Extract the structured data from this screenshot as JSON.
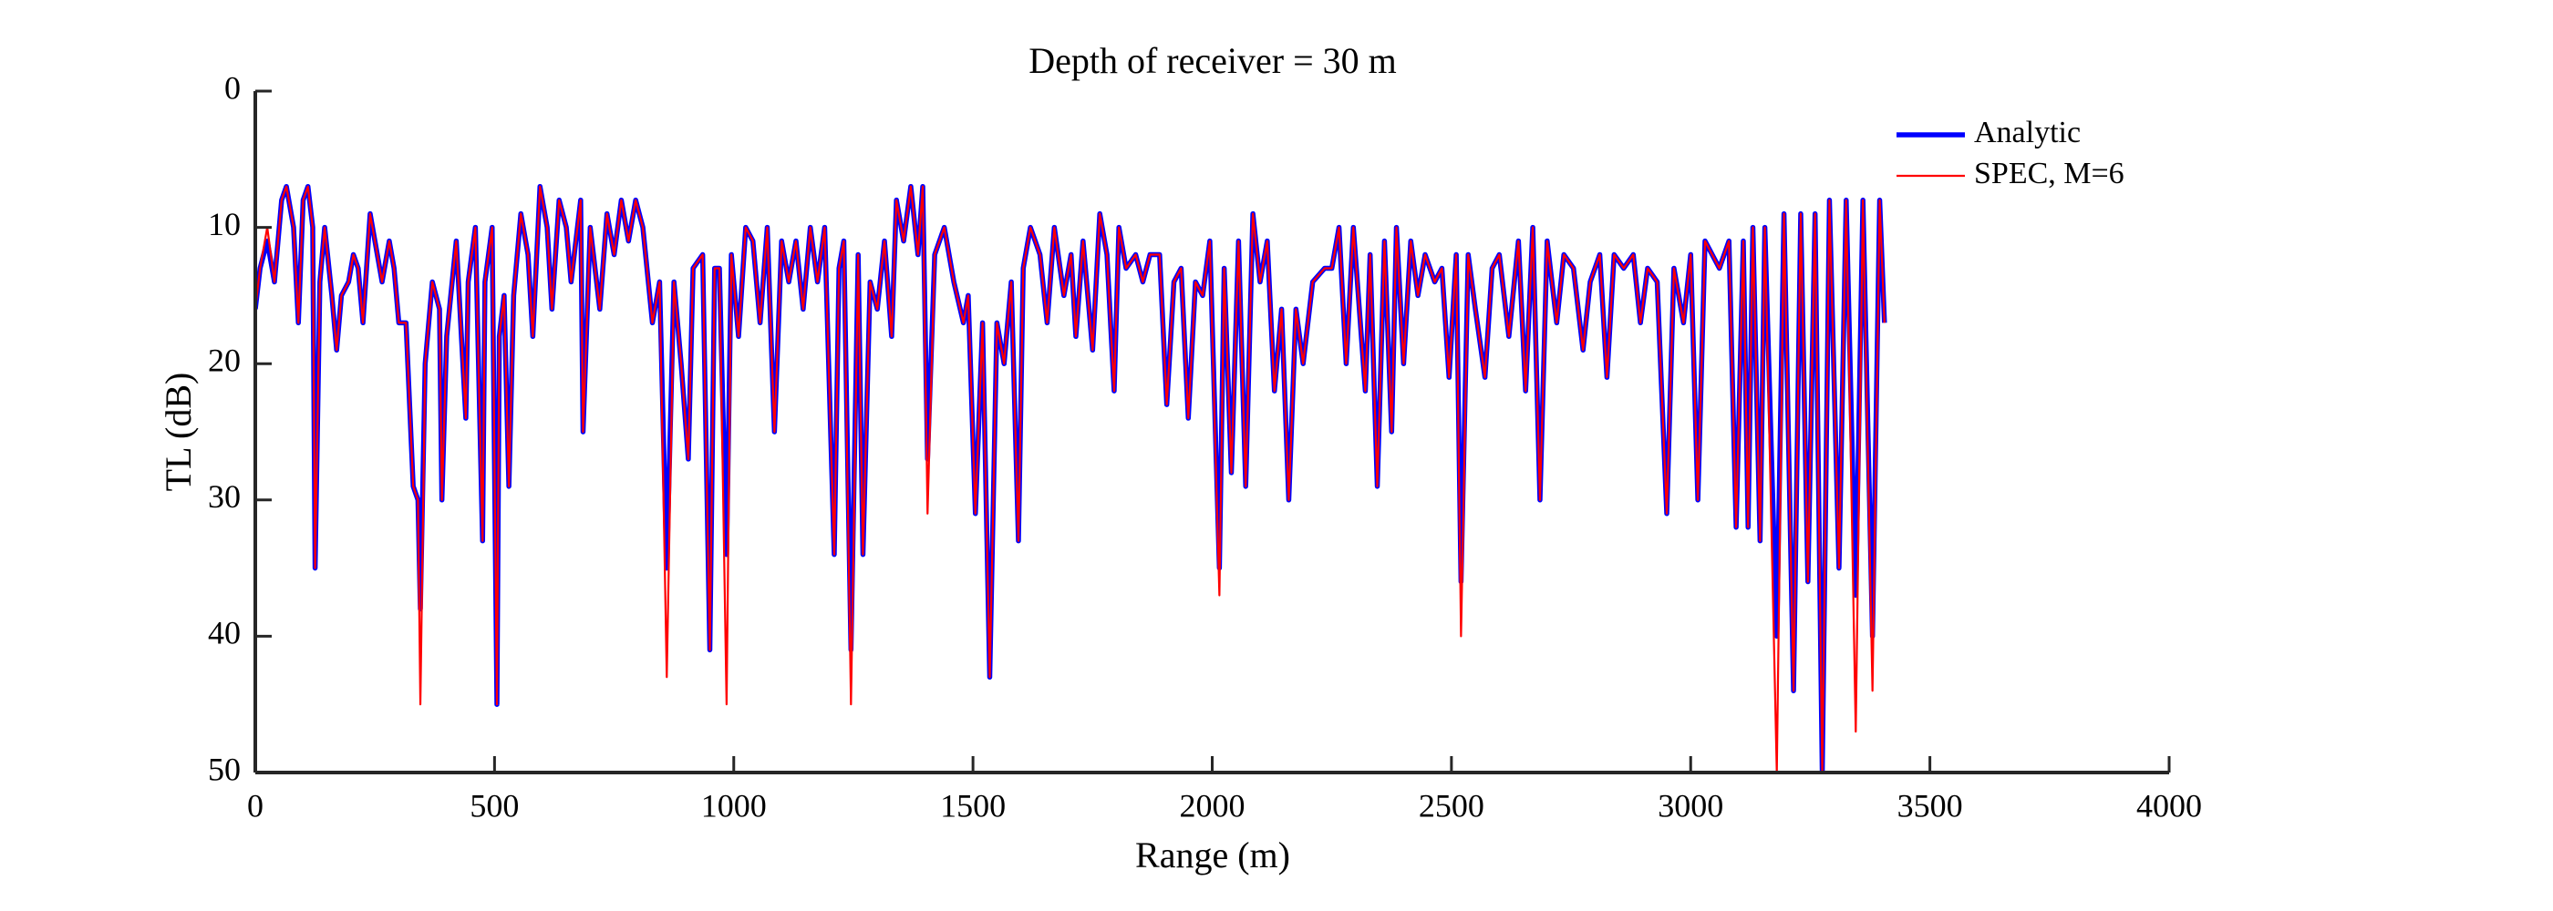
{
  "chart_data": {
    "type": "line",
    "title": "Depth of receiver = 30 m",
    "xlabel": "Range (m)",
    "ylabel": "TL (dB)",
    "xlim": [
      0,
      4000
    ],
    "xticks": [
      0,
      500,
      1000,
      1500,
      2000,
      2500,
      3000,
      3500,
      4000
    ],
    "ylim": [
      0,
      50
    ],
    "yticks": [
      0,
      10,
      20,
      30,
      40,
      50
    ],
    "y_reversed": true,
    "grid": false,
    "legend": "upper right",
    "x": [
      0,
      10,
      25,
      40,
      55,
      65,
      80,
      90,
      100,
      110,
      120,
      125,
      135,
      145,
      160,
      170,
      180,
      195,
      205,
      215,
      225,
      240,
      255,
      265,
      280,
      290,
      300,
      315,
      330,
      340,
      345,
      355,
      370,
      385,
      390,
      400,
      420,
      440,
      445,
      460,
      475,
      480,
      495,
      505,
      510,
      520,
      530,
      540,
      555,
      570,
      580,
      595,
      610,
      620,
      635,
      650,
      660,
      680,
      685,
      700,
      720,
      735,
      750,
      765,
      780,
      795,
      810,
      830,
      845,
      860,
      875,
      890,
      905,
      915,
      935,
      950,
      960,
      970,
      985,
      995,
      1010,
      1025,
      1040,
      1055,
      1070,
      1085,
      1100,
      1115,
      1130,
      1145,
      1160,
      1175,
      1190,
      1210,
      1220,
      1230,
      1245,
      1260,
      1270,
      1285,
      1300,
      1315,
      1330,
      1340,
      1355,
      1370,
      1385,
      1395,
      1405,
      1420,
      1440,
      1460,
      1480,
      1490,
      1505,
      1520,
      1535,
      1550,
      1565,
      1580,
      1595,
      1605,
      1620,
      1640,
      1655,
      1670,
      1690,
      1705,
      1715,
      1730,
      1750,
      1765,
      1780,
      1795,
      1805,
      1820,
      1840,
      1855,
      1870,
      1890,
      1905,
      1920,
      1935,
      1950,
      1965,
      1980,
      1995,
      2015,
      2025,
      2040,
      2055,
      2070,
      2085,
      2100,
      2115,
      2130,
      2145,
      2160,
      2175,
      2190,
      2210,
      2235,
      2250,
      2265,
      2280,
      2295,
      2320,
      2330,
      2345,
      2360,
      2375,
      2385,
      2400,
      2415,
      2430,
      2445,
      2465,
      2480,
      2495,
      2510,
      2520,
      2535,
      2550,
      2570,
      2585,
      2600,
      2620,
      2640,
      2655,
      2670,
      2685,
      2700,
      2720,
      2735,
      2755,
      2775,
      2790,
      2810,
      2825,
      2840,
      2860,
      2880,
      2895,
      2910,
      2930,
      2950,
      2965,
      2985,
      3000,
      3015,
      3030,
      3060,
      3080,
      3095,
      3110,
      3120,
      3130,
      3145,
      3155,
      3180,
      3195,
      3215,
      3230,
      3245,
      3260,
      3275,
      3290,
      3310,
      3325,
      3345,
      3360,
      3380,
      3395,
      3405
    ],
    "series": [
      {
        "name": "Analytic",
        "color": "#0000ff",
        "values": [
          16,
          13,
          11,
          14,
          8,
          7,
          10,
          17,
          8,
          7,
          10,
          35,
          14,
          10,
          15,
          19,
          15,
          14,
          12,
          13,
          17,
          9,
          12,
          14,
          11,
          13,
          17,
          17,
          29,
          30,
          38,
          20,
          14,
          16,
          30,
          18,
          11,
          24,
          14,
          10,
          33,
          14,
          10,
          45,
          18,
          15,
          29,
          15,
          9,
          12,
          18,
          7,
          10,
          16,
          8,
          10,
          14,
          8,
          25,
          10,
          16,
          9,
          12,
          8,
          11,
          8,
          10,
          17,
          14,
          35,
          14,
          20,
          27,
          13,
          12,
          41,
          13,
          13,
          34,
          12,
          18,
          10,
          11,
          17,
          10,
          25,
          11,
          14,
          11,
          16,
          10,
          14,
          10,
          34,
          13,
          11,
          41,
          12,
          34,
          14,
          16,
          11,
          18,
          8,
          11,
          7,
          12,
          7,
          27,
          12,
          10,
          14,
          17,
          15,
          31,
          17,
          43,
          17,
          20,
          14,
          33,
          13,
          10,
          12,
          17,
          10,
          15,
          12,
          18,
          11,
          19,
          9,
          12,
          22,
          10,
          13,
          12,
          14,
          12,
          12,
          23,
          14,
          13,
          24,
          14,
          15,
          11,
          35,
          13,
          28,
          11,
          29,
          9,
          14,
          11,
          22,
          16,
          30,
          16,
          20,
          14,
          13,
          13,
          10,
          20,
          10,
          22,
          12,
          29,
          11,
          25,
          10,
          20,
          11,
          15,
          12,
          14,
          13,
          21,
          12,
          36,
          12,
          16,
          21,
          13,
          12,
          18,
          11,
          22,
          10,
          30,
          11,
          17,
          12,
          13,
          19,
          14,
          12,
          21,
          12,
          13,
          12,
          17,
          13,
          14,
          31,
          13,
          17,
          12,
          30,
          11,
          13,
          11,
          32,
          11,
          32,
          10,
          33,
          10,
          40,
          9,
          44,
          9,
          36,
          9,
          50,
          8,
          35,
          8,
          37,
          8,
          40,
          8,
          17
        ]
      },
      {
        "name": "SPEC, M=6",
        "color": "#ff0000",
        "values": [
          16,
          13,
          10,
          14,
          8,
          7,
          10,
          17,
          8,
          7,
          10,
          35,
          14,
          10,
          15,
          19,
          15,
          14,
          12,
          13,
          17,
          9,
          12,
          14,
          11,
          13,
          17,
          17,
          29,
          30,
          45,
          20,
          14,
          16,
          30,
          18,
          11,
          24,
          14,
          10,
          33,
          14,
          10,
          45,
          18,
          15,
          29,
          15,
          9,
          12,
          18,
          7,
          10,
          16,
          8,
          10,
          14,
          8,
          25,
          10,
          16,
          9,
          12,
          8,
          11,
          8,
          10,
          17,
          14,
          43,
          14,
          20,
          27,
          13,
          12,
          41,
          13,
          13,
          45,
          12,
          18,
          10,
          11,
          17,
          10,
          25,
          11,
          14,
          11,
          16,
          10,
          14,
          10,
          34,
          13,
          11,
          45,
          12,
          34,
          14,
          16,
          11,
          18,
          8,
          11,
          7,
          12,
          7,
          31,
          12,
          10,
          14,
          17,
          15,
          31,
          17,
          43,
          17,
          20,
          14,
          33,
          13,
          10,
          12,
          17,
          10,
          15,
          12,
          18,
          11,
          19,
          9,
          12,
          22,
          10,
          13,
          12,
          14,
          12,
          12,
          23,
          14,
          13,
          24,
          14,
          15,
          11,
          37,
          13,
          28,
          11,
          29,
          9,
          14,
          11,
          22,
          16,
          30,
          16,
          20,
          14,
          13,
          13,
          10,
          20,
          10,
          22,
          12,
          29,
          11,
          25,
          10,
          20,
          11,
          15,
          12,
          14,
          13,
          21,
          12,
          40,
          12,
          16,
          21,
          13,
          12,
          18,
          11,
          22,
          10,
          30,
          11,
          17,
          12,
          13,
          19,
          14,
          12,
          21,
          12,
          13,
          12,
          17,
          13,
          14,
          31,
          13,
          17,
          12,
          30,
          11,
          13,
          11,
          32,
          11,
          32,
          10,
          33,
          10,
          50,
          9,
          44,
          9,
          36,
          9,
          50,
          8,
          35,
          8,
          47,
          8,
          44,
          8,
          17
        ]
      }
    ]
  }
}
